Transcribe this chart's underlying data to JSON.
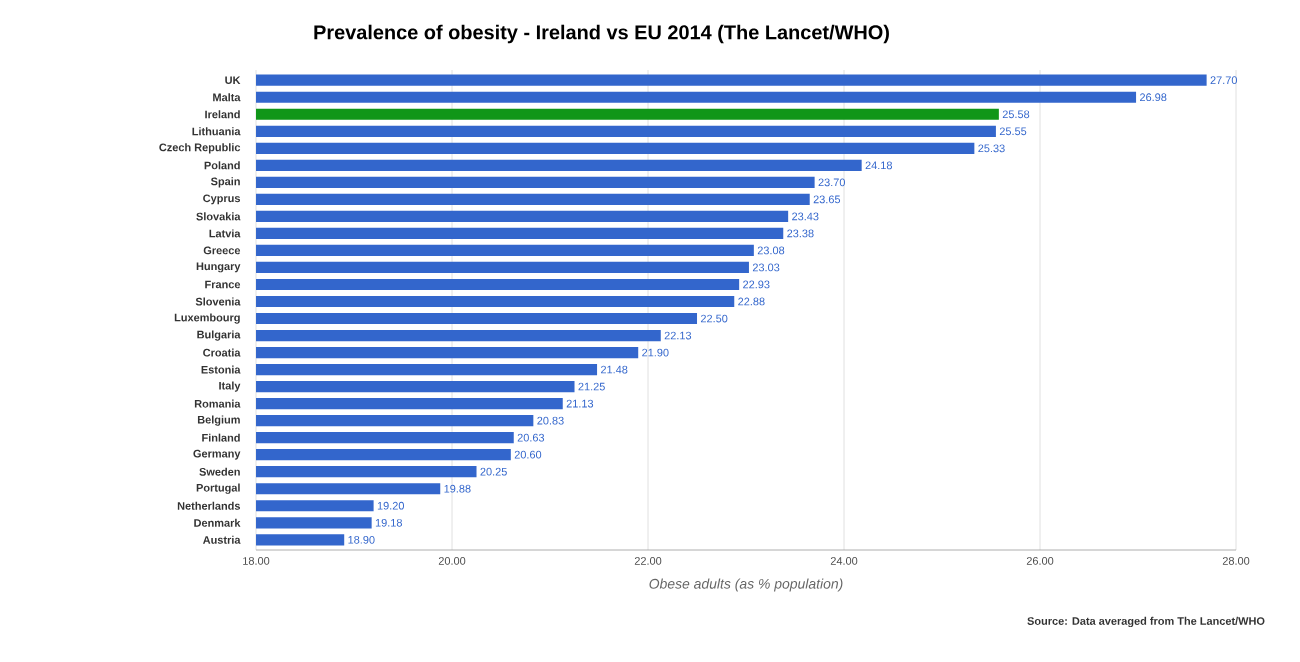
{
  "chart_data": {
    "type": "bar",
    "orientation": "horizontal",
    "title": "Prevalence of obesity - Ireland vs EU 2014 (The Lancet/WHO)",
    "xlabel": "Obese adults (as % population)",
    "annotations": [
      "Source: Data averaged from The Lancet/WHO"
    ],
    "categories": [
      "UK",
      "Malta",
      "Ireland",
      "Lithuania",
      "Czech Republic",
      "Poland",
      "Spain",
      "Cyprus",
      "Slovakia",
      "Latvia",
      "Greece",
      "Hungary",
      "France",
      "Slovenia",
      "Luxembourg",
      "Bulgaria",
      "Croatia",
      "Estonia",
      "Italy",
      "Romania",
      "Belgium",
      "Finland",
      "Germany",
      "Sweden",
      "Portugal",
      "Netherlands",
      "Denmark",
      "Austria"
    ],
    "values": [
      27.7,
      26.98,
      25.58,
      25.55,
      25.33,
      24.18,
      23.7,
      23.65,
      23.43,
      23.38,
      23.08,
      23.03,
      22.93,
      22.88,
      22.5,
      22.13,
      21.9,
      21.48,
      21.25,
      21.13,
      20.83,
      20.63,
      20.6,
      20.25,
      19.88,
      19.2,
      19.18,
      18.9
    ],
    "value_labels": [
      "27.70",
      "26.98",
      "25.58",
      "25.55",
      "25.33",
      "24.18",
      "23.70",
      "23.65",
      "23.43",
      "23.38",
      "23.08",
      "23.03",
      "22.93",
      "22.88",
      "22.50",
      "22.13",
      "21.90",
      "21.48",
      "21.25",
      "21.13",
      "20.83",
      "20.63",
      "20.60",
      "20.25",
      "19.88",
      "19.20",
      "19.18",
      "18.90"
    ],
    "colors": [
      "#3366cc",
      "#3366cc",
      "#109618",
      "#3366cc",
      "#3366cc",
      "#3366cc",
      "#3366cc",
      "#3366cc",
      "#3366cc",
      "#3366cc",
      "#3366cc",
      "#3366cc",
      "#3366cc",
      "#3366cc",
      "#3366cc",
      "#3366cc",
      "#3366cc",
      "#3366cc",
      "#3366cc",
      "#3366cc",
      "#3366cc",
      "#3366cc",
      "#3366cc",
      "#3366cc",
      "#3366cc",
      "#3366cc",
      "#3366cc",
      "#3366cc"
    ],
    "xlim": [
      18,
      28
    ],
    "xticks": [
      {
        "value": 18,
        "label": "18.00"
      },
      {
        "value": 20,
        "label": "20.00"
      },
      {
        "value": 22,
        "label": "22.00"
      },
      {
        "value": 24,
        "label": "24.00"
      },
      {
        "value": 26,
        "label": "26.00"
      },
      {
        "value": 28,
        "label": "28.00"
      }
    ],
    "grid": "x"
  }
}
